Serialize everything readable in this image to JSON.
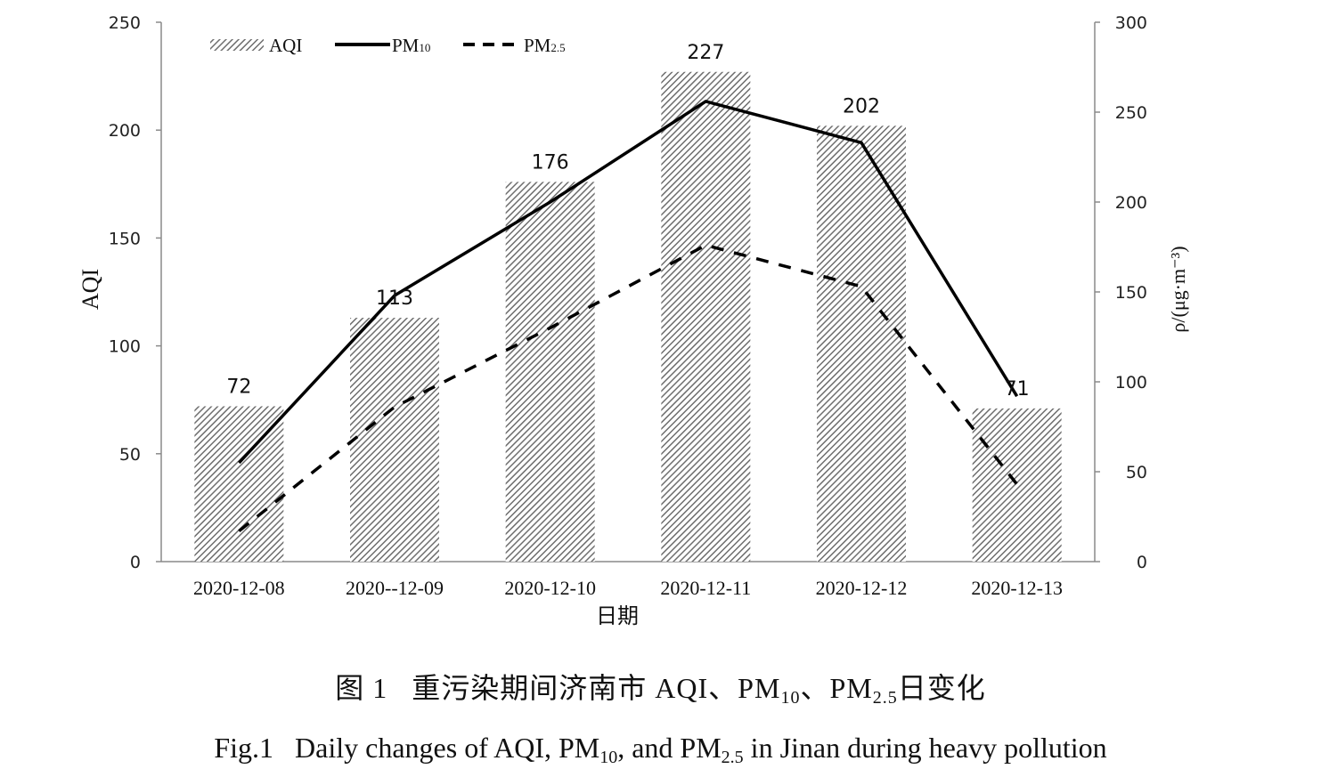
{
  "chart_data": {
    "type": "bar",
    "categories": [
      "2020-12-08",
      "2020--12-09",
      "2020-12-10",
      "2020-12-11",
      "2020-12-12",
      "2020-12-13"
    ],
    "xlabel": "日期",
    "ylabel": "AQI",
    "y2label": "ρ/(μg·m⁻³)",
    "ylim": [
      0,
      250
    ],
    "y2lim": [
      0,
      300
    ],
    "yticks": [
      0,
      50,
      100,
      150,
      200,
      250
    ],
    "y2ticks": [
      0,
      50,
      100,
      150,
      200,
      250,
      300
    ],
    "grid": false,
    "legend_position": "top-left",
    "series": [
      {
        "name": "AQI",
        "type": "bar",
        "axis": "left",
        "style": "hatched",
        "values": [
          72,
          113,
          176,
          227,
          202,
          71
        ]
      },
      {
        "name": "PM10",
        "type": "line",
        "axis": "right",
        "style": "solid",
        "values": [
          55,
          148,
          200,
          256,
          233,
          92
        ]
      },
      {
        "name": "PM2.5",
        "type": "line",
        "axis": "right",
        "style": "dashed",
        "values": [
          17,
          86,
          130,
          176,
          153,
          43
        ]
      }
    ],
    "data_labels": [
      "72",
      "113",
      "176",
      "227",
      "202",
      "71"
    ]
  },
  "legend": {
    "aqi": "AQI",
    "pm10_main": "PM",
    "pm10_sub": "10",
    "pm25_main": "PM",
    "pm25_sub": "2.5"
  },
  "caption": {
    "cn_prefix": "图 1",
    "cn_text": "重污染期间济南市 AQI、PM",
    "cn_sub1": "10",
    "cn_mid": "、PM",
    "cn_sub2": "2.5",
    "cn_suffix": "日变化",
    "en_prefix": "Fig.1",
    "en_text": "Daily changes of AQI, PM",
    "en_sub1": "10",
    "en_mid": ", and PM",
    "en_sub2": "2.5",
    "en_suffix": " in Jinan during heavy pollution"
  },
  "colors": {
    "bar_hatch": "#6e6e6e",
    "line": "#000000",
    "axis": "#8a8a8a"
  }
}
